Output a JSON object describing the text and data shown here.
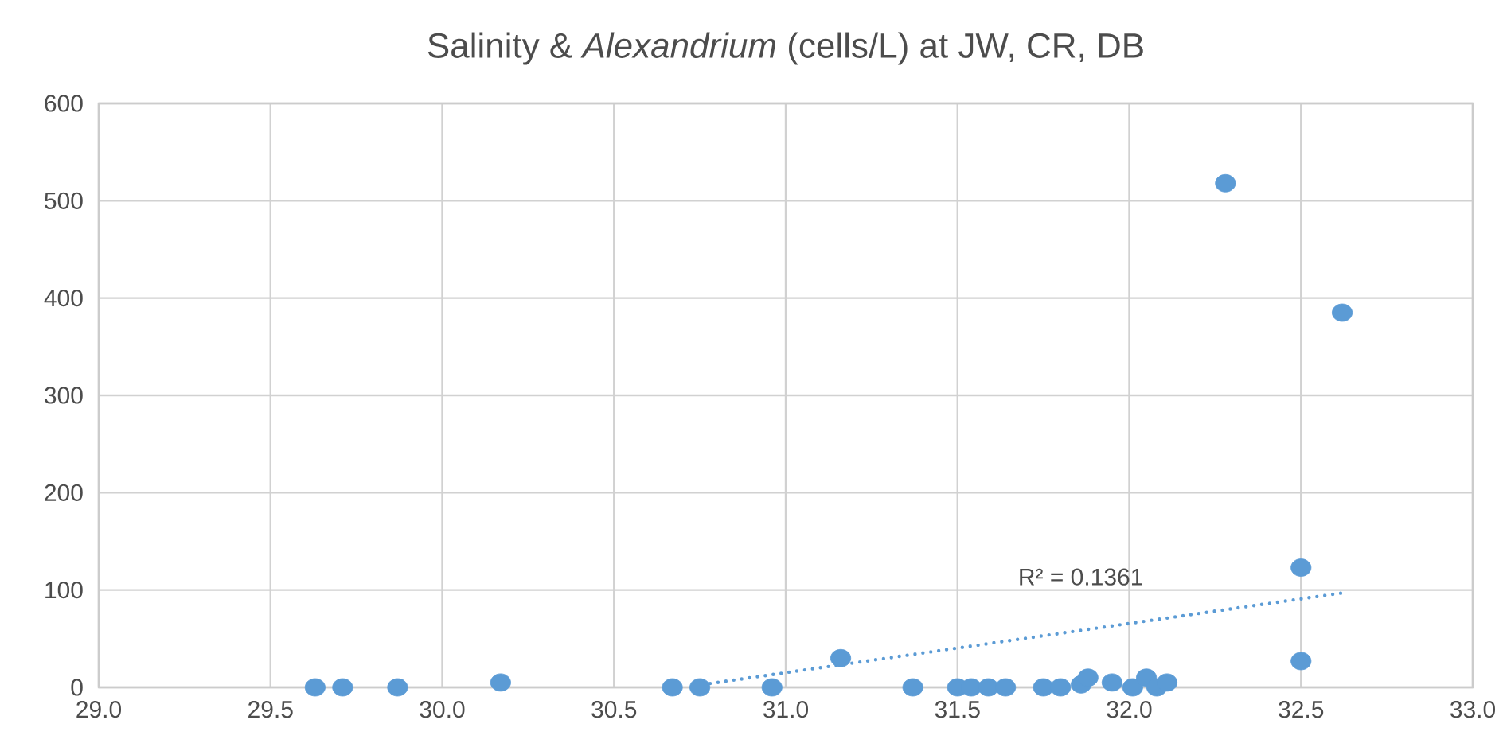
{
  "chart_data": {
    "type": "scatter",
    "title": "Salinity & *Alexandrium* (cells/L) at JW, CR, DB",
    "grid": true,
    "xlim": [
      29.0,
      33.0
    ],
    "xticks": [
      {
        "value": 29.0,
        "label": "29.0"
      },
      {
        "value": 29.5,
        "label": "29.5"
      },
      {
        "value": 30.0,
        "label": "30.0"
      },
      {
        "value": 30.5,
        "label": "30.5"
      },
      {
        "value": 31.0,
        "label": "31.0"
      },
      {
        "value": 31.5,
        "label": "31.5"
      },
      {
        "value": 32.0,
        "label": "32.0"
      },
      {
        "value": 32.5,
        "label": "32.5"
      },
      {
        "value": 33.0,
        "label": "33.0"
      }
    ],
    "ylim": [
      0,
      600
    ],
    "yticks": [
      0,
      100,
      200,
      300,
      400,
      500,
      600
    ],
    "series": [
      {
        "marker": "circle",
        "color": "#5b9bd5",
        "x": [
          29.63,
          29.71,
          29.87,
          30.17,
          30.67,
          30.75,
          30.96,
          31.16,
          31.37,
          31.5,
          31.54,
          31.59,
          31.64,
          31.75,
          31.8,
          31.86,
          31.88,
          31.95,
          32.01,
          32.05,
          32.08,
          32.11,
          32.28,
          32.5,
          32.5,
          32.62
        ],
        "values": [
          0,
          0,
          0,
          5,
          0,
          0,
          0,
          30,
          0,
          0,
          0,
          0,
          0,
          0,
          0,
          3,
          10,
          5,
          0,
          10,
          0,
          5,
          518,
          27,
          123,
          385
        ]
      },
      {
        "type": "line",
        "line_style": "dotted",
        "marker": "none",
        "color": "#5b9bd5",
        "x": [
          30.78,
          32.62
        ],
        "values": [
          4,
          97
        ]
      }
    ],
    "annotations": [
      "R² = 0.1361"
    ]
  }
}
